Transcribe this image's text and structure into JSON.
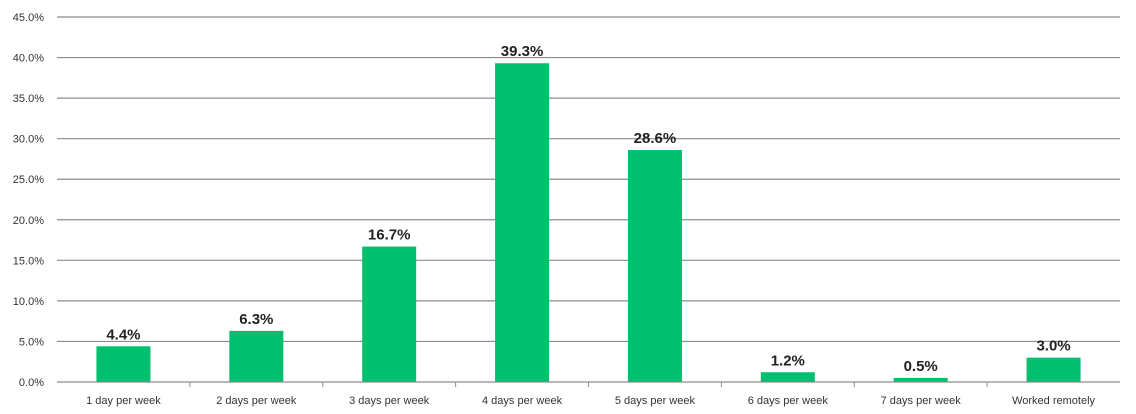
{
  "chart_data": {
    "type": "bar",
    "title": "",
    "xlabel": "",
    "ylabel": "",
    "categories": [
      "1 day per week",
      "2 days per week",
      "3 days per week",
      "4 days per week",
      "5 days per week",
      "6 days per week",
      "7 days per week",
      "Worked remotely"
    ],
    "values": [
      4.4,
      6.3,
      16.7,
      39.3,
      28.6,
      1.2,
      0.5,
      3.0
    ],
    "data_labels": [
      "4.4%",
      "6.3%",
      "16.7%",
      "39.3%",
      "28.6%",
      "1.2%",
      "0.5%",
      "3.0%"
    ],
    "ylim": [
      0,
      45
    ],
    "yticks": [
      0,
      5,
      10,
      15,
      20,
      25,
      30,
      35,
      40,
      45
    ],
    "ytick_labels": [
      "0.0%",
      "5.0%",
      "10.0%",
      "15.0%",
      "20.0%",
      "25.0%",
      "30.0%",
      "35.0%",
      "40.0%",
      "45.0%"
    ],
    "grid": true,
    "legend": "none",
    "bar_color": "#00BF6F",
    "gridline_color": "#8c8c8c"
  }
}
